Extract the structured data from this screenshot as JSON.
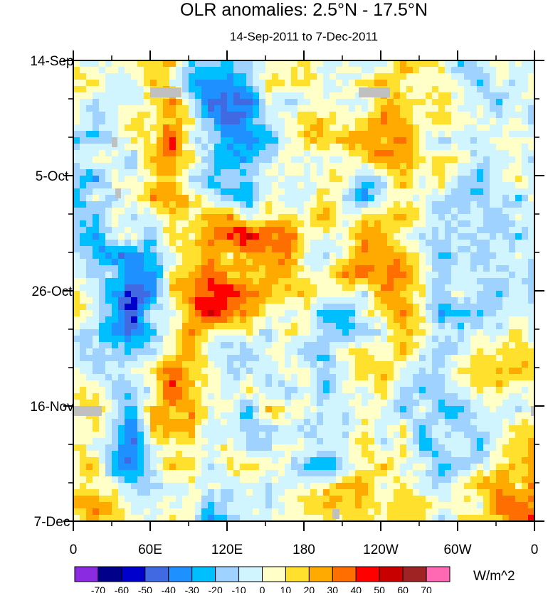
{
  "chart_data": {
    "type": "heatmap",
    "title": "OLR anomalies: 2.5°N - 17.5°N",
    "subtitle": "14-Sep-2011 to 7-Dec-2011",
    "xlabel": "",
    "ylabel": "",
    "x_ticks": [
      "0",
      "60E",
      "120E",
      "180",
      "120W",
      "60W",
      "0"
    ],
    "x_tick_values": [
      0,
      60,
      120,
      180,
      240,
      300,
      360
    ],
    "y_ticks": [
      "14-Sep",
      "5-Oct",
      "26-Oct",
      "16-Nov",
      "7-Dec"
    ],
    "y_tick_days": [
      0,
      21,
      42,
      63,
      84
    ],
    "xlim": [
      0,
      360
    ],
    "ylim_days": [
      0,
      84
    ],
    "units": "W/m^2",
    "levels": [
      -70,
      -60,
      -50,
      -40,
      -30,
      -20,
      -10,
      0,
      10,
      20,
      30,
      40,
      50,
      60,
      70
    ],
    "colors": [
      "#8a2be2",
      "#00008b",
      "#0000cd",
      "#4169e1",
      "#1e90ff",
      "#00bfff",
      "#a0d2ff",
      "#d1f5ff",
      "#ffffc8",
      "#ffe12d",
      "#ffaa00",
      "#ff6e00",
      "#ff0000",
      "#c80000",
      "#a02323",
      "#ff69b4"
    ],
    "missing_color": "#c0c0c0",
    "grid_lon_step": 30,
    "grid_day_step": 7,
    "approx_field": [
      [
        0,
        -5,
        15,
        -30,
        -25,
        10,
        5,
        0,
        15,
        -5,
        -10,
        5
      ],
      [
        -5,
        0,
        25,
        -25,
        -35,
        5,
        10,
        5,
        20,
        10,
        -10,
        -5
      ],
      [
        -10,
        -5,
        40,
        -15,
        -30,
        10,
        5,
        15,
        20,
        5,
        -5,
        0
      ],
      [
        -15,
        5,
        30,
        -10,
        -20,
        5,
        15,
        -30,
        5,
        -5,
        -15,
        -10
      ],
      [
        -20,
        -10,
        10,
        20,
        35,
        25,
        10,
        15,
        10,
        -20,
        -20,
        -10
      ],
      [
        -10,
        -35,
        -5,
        30,
        30,
        10,
        5,
        25,
        30,
        -10,
        -15,
        0
      ],
      [
        0,
        -40,
        -5,
        40,
        20,
        5,
        -10,
        -10,
        25,
        -20,
        -5,
        -10
      ],
      [
        -5,
        -20,
        20,
        10,
        -30,
        10,
        -10,
        0,
        10,
        -5,
        5,
        15
      ],
      [
        5,
        -15,
        30,
        20,
        0,
        5,
        -15,
        5,
        -5,
        -10,
        15,
        0
      ],
      [
        0,
        -25,
        40,
        10,
        -10,
        10,
        -20,
        -5,
        -5,
        -15,
        -10,
        5
      ],
      [
        15,
        -55,
        10,
        5,
        -5,
        5,
        -20,
        10,
        5,
        -15,
        -10,
        20
      ],
      [
        20,
        -10,
        10,
        -25,
        -10,
        10,
        5,
        20,
        5,
        -5,
        10,
        30
      ]
    ]
  }
}
